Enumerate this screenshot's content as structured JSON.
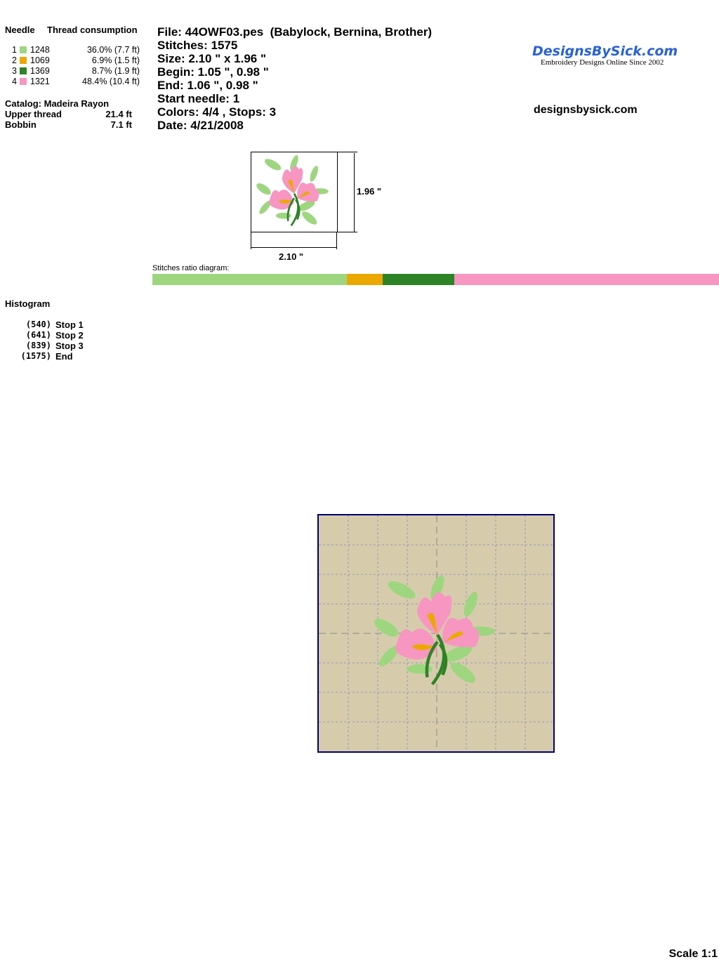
{
  "left": {
    "needle_header": "Needle",
    "thread_header": "Thread consumption",
    "needles": [
      {
        "num": "1",
        "color": "#9ed680",
        "code": "1248",
        "usage": "36.0% (7.7 ft)"
      },
      {
        "num": "2",
        "color": "#eaa800",
        "code": "1069",
        "usage": "6.9% (1.5 ft)"
      },
      {
        "num": "3",
        "color": "#2d8325",
        "code": "1369",
        "usage": "8.7% (1.9 ft)"
      },
      {
        "num": "4",
        "color": "#f796c0",
        "code": "1321",
        "usage": "48.4% (10.4 ft)"
      }
    ],
    "catalog": "Catalog: Madeira Rayon",
    "upper_label": "Upper thread",
    "upper_value": "21.4 ft",
    "bobbin_label": "Bobbin",
    "bobbin_value": "7.1 ft"
  },
  "info": [
    "File: 44OWF03.pes  (Babylock, Bernina, Brother)",
    "Stitches: 1575",
    "Size: 2.10 \" x 1.96 \"",
    "Begin: 1.05 \", 0.98 \"",
    "End: 1.06 \", 0.98 \"",
    "Start needle: 1",
    "Colors: 4/4 , Stops: 3",
    "Date: 4/21/2008"
  ],
  "logo": {
    "name": "DesignsBySick.com",
    "tagline": "Embroidery Designs Online Since 2002"
  },
  "website": "designsbysick.com",
  "dims": {
    "width": "2.10 \"",
    "height": "1.96 \""
  },
  "ratio_label": "Stitches ratio diagram:",
  "histogram": {
    "title": "Histogram",
    "stops": [
      {
        "count": "(540)",
        "label": "Stop 1"
      },
      {
        "count": "(641)",
        "label": "Stop 2"
      },
      {
        "count": "(839)",
        "label": "Stop 3"
      },
      {
        "count": "(1575)",
        "label": "End"
      }
    ]
  },
  "hoop": {
    "background": "#d6ccac",
    "border": "#000070"
  },
  "scale": "Scale 1:1"
}
